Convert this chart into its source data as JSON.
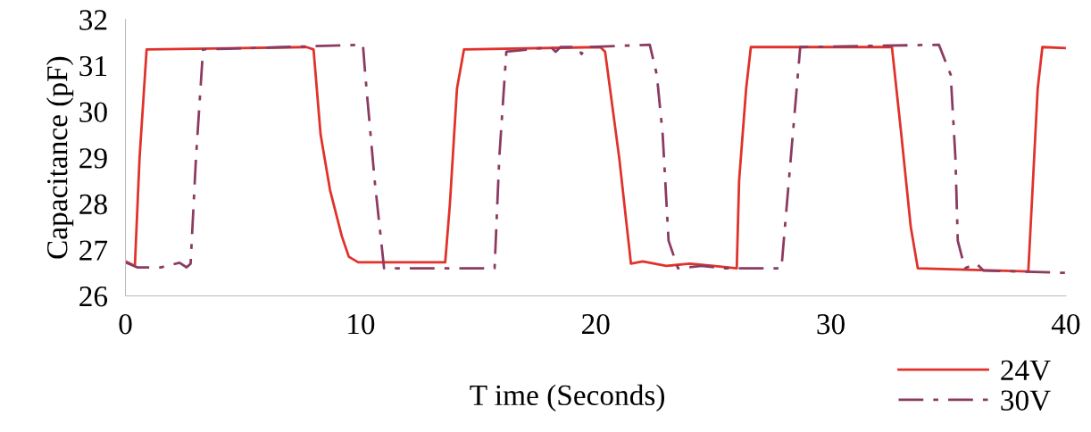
{
  "chart_data": {
    "type": "line",
    "xlabel": "T ime (Seconds)",
    "ylabel": "Capacitance (pF)",
    "xlim": [
      0,
      40
    ],
    "xticks": [
      0,
      10,
      20,
      30,
      40
    ],
    "ylim": [
      26,
      32
    ],
    "yticks": [
      26,
      27,
      28,
      29,
      30,
      31,
      32
    ],
    "grid": false,
    "legend": "bottom right",
    "marker": "none",
    "series": [
      {
        "name": "24V",
        "color": "#e0322a",
        "line_style": "solid",
        "x": [
          0,
          0.4,
          0.6,
          0.9,
          7.7,
          8.0,
          8.3,
          8.7,
          9.2,
          9.5,
          9.9,
          13.6,
          13.8,
          14.1,
          14.4,
          20.2,
          20.4,
          21.0,
          21.5,
          22.0,
          23.0,
          24.0,
          25.0,
          26.0,
          26.1,
          26.4,
          26.6,
          32.6,
          33.0,
          33.4,
          33.7,
          38.4,
          38.6,
          38.8,
          39.0,
          40
        ],
        "values": [
          26.75,
          26.65,
          29,
          31.35,
          31.4,
          31.35,
          29.5,
          28.3,
          27.3,
          26.85,
          26.73,
          26.73,
          28,
          30.5,
          31.35,
          31.4,
          31.3,
          29,
          26.7,
          26.75,
          26.65,
          26.7,
          26.65,
          26.6,
          28.5,
          30.5,
          31.4,
          31.4,
          29.5,
          27.5,
          26.6,
          26.53,
          28.5,
          30.5,
          31.4,
          31.38
        ]
      },
      {
        "name": "30V",
        "color": "#8b3a62",
        "line_style": "dashdot",
        "x": [
          0,
          0.5,
          1.5,
          2.3,
          2.6,
          2.77,
          3.0,
          3.3,
          10.1,
          10.2,
          10.6,
          11.0,
          11.1,
          15.7,
          15.9,
          16.2,
          18.1,
          18.3,
          18.5,
          19.2,
          19.4,
          19.6,
          22.3,
          22.6,
          22.85,
          23.1,
          23.5,
          24.5,
          25.5,
          27.9,
          28.3,
          28.7,
          34.6,
          35.1,
          35.3,
          35.4,
          35.7,
          36.2,
          36.5,
          40
        ],
        "values": [
          26.73,
          26.62,
          26.62,
          26.72,
          26.62,
          26.7,
          29,
          31.35,
          31.45,
          30.8,
          28.5,
          26.6,
          26.6,
          26.6,
          29,
          31.3,
          31.4,
          31.3,
          31.4,
          31.4,
          31.25,
          31.4,
          31.45,
          30.8,
          29.5,
          27.2,
          26.6,
          26.65,
          26.6,
          26.6,
          29,
          31.4,
          31.45,
          30.8,
          29,
          27.2,
          26.6,
          26.7,
          26.55,
          26.5
        ]
      }
    ]
  }
}
